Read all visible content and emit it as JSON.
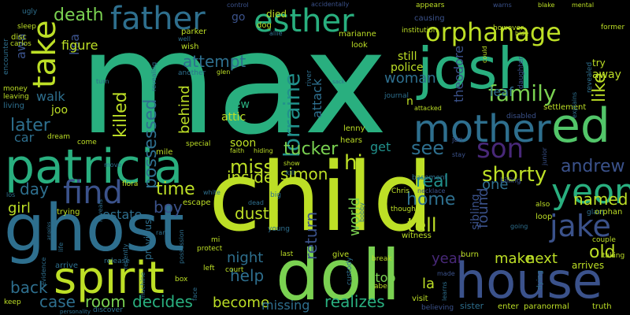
{
  "background": "#000000",
  "palette": {
    "lime": "#bddf26",
    "green": "#29af7f",
    "teal": "#2e6f8e",
    "blue": "#3b528b",
    "purple": "#482878",
    "dark": "#440154",
    "yellowgreen": "#7ad151",
    "cyan": "#21918c"
  },
  "words": [
    {
      "text": "max",
      "color": "#29af7f"
    },
    {
      "text": "child",
      "color": "#bddf26"
    },
    {
      "text": "josh",
      "color": "#29af7f"
    },
    {
      "text": "ghost",
      "color": "#2e6f8e"
    },
    {
      "text": "doll",
      "color": "#7ad151"
    },
    {
      "text": "house",
      "color": "#3b528b"
    },
    {
      "text": "patricia",
      "color": "#29af7f"
    },
    {
      "text": "spirit",
      "color": "#bddf26"
    },
    {
      "text": "ed",
      "color": "#52c569"
    },
    {
      "text": "mother",
      "color": "#2e6f8e"
    },
    {
      "text": "father",
      "color": "#2e6f8e"
    },
    {
      "text": "esther",
      "color": "#29af7f"
    },
    {
      "text": "orphanage",
      "color": "#bddf26"
    },
    {
      "text": "take",
      "color": "#bddf26"
    },
    {
      "text": "yeon",
      "color": "#29af7f"
    },
    {
      "text": "jake",
      "color": "#3b528b"
    },
    {
      "text": "son",
      "color": "#482878"
    },
    {
      "text": "find",
      "color": "#3b528b"
    },
    {
      "text": "lorraine",
      "color": "#21918c"
    },
    {
      "text": "family",
      "color": "#7ad151"
    },
    {
      "text": "shorty",
      "color": "#bddf26"
    },
    {
      "text": "killed",
      "color": "#bddf26"
    },
    {
      "text": "possessed",
      "color": "#2e6f8e"
    },
    {
      "text": "death",
      "color": "#7ad151"
    },
    {
      "text": "andrew",
      "color": "#3b528b"
    },
    {
      "text": "hi",
      "color": "#bddf26"
    },
    {
      "text": "see",
      "color": "#2e6f8e"
    },
    {
      "text": "later",
      "color": "#2e6f8e"
    },
    {
      "text": "miss",
      "color": "#bddf26"
    },
    {
      "text": "tucker",
      "color": "#7ad151"
    },
    {
      "text": "like",
      "color": "#bddf26"
    },
    {
      "text": "time",
      "color": "#bddf26"
    },
    {
      "text": "attempt",
      "color": "#2e6f8e"
    },
    {
      "text": "day",
      "color": "#2e6f8e"
    },
    {
      "text": "real",
      "color": "#21918c"
    },
    {
      "text": "home",
      "color": "#2e6f8e"
    },
    {
      "text": "tell",
      "color": "#bddf26"
    },
    {
      "text": "named",
      "color": "#bddf26"
    },
    {
      "text": "old",
      "color": "#bddf26"
    },
    {
      "text": "dusty",
      "color": "#bddf26"
    },
    {
      "text": "inside",
      "color": "#bddf26"
    },
    {
      "text": "simon",
      "color": "#bddf26"
    },
    {
      "text": "boy",
      "color": "#3b528b"
    },
    {
      "text": "return",
      "color": "#3b528b"
    },
    {
      "text": "found",
      "color": "#3b528b"
    },
    {
      "text": "world",
      "color": "#7ad151"
    },
    {
      "text": "help",
      "color": "#2e6f8e"
    },
    {
      "text": "night",
      "color": "#2e6f8e"
    },
    {
      "text": "become",
      "color": "#bddf26"
    },
    {
      "text": "room",
      "color": "#7ad151"
    },
    {
      "text": "case",
      "color": "#2e6f8e"
    },
    {
      "text": "back",
      "color": "#2e6f8e"
    },
    {
      "text": "decides",
      "color": "#29af7f"
    },
    {
      "text": "realizes",
      "color": "#29af7f"
    },
    {
      "text": "missing",
      "color": "#2e6f8e"
    },
    {
      "text": "make",
      "color": "#bddf26"
    },
    {
      "text": "next",
      "color": "#bddf26"
    },
    {
      "text": "year",
      "color": "#482878"
    },
    {
      "text": "la",
      "color": "#bddf26"
    },
    {
      "text": "stop",
      "color": "#7ad151"
    },
    {
      "text": "girl",
      "color": "#bddf26"
    },
    {
      "text": "estate",
      "color": "#2e6f8e"
    },
    {
      "text": "one",
      "color": "#2e6f8e"
    },
    {
      "text": "get",
      "color": "#21918c"
    },
    {
      "text": "attack",
      "color": "#2e6f8e"
    },
    {
      "text": "theodore",
      "color": "#3b528b"
    },
    {
      "text": "woman",
      "color": "#2e6f8e"
    },
    {
      "text": "lisa",
      "color": "#3b528b"
    },
    {
      "text": "figure",
      "color": "#bddf26"
    },
    {
      "text": "behind",
      "color": "#bddf26"
    },
    {
      "text": "soon",
      "color": "#bddf26"
    },
    {
      "text": "leaf",
      "color": "#2e6f8e"
    },
    {
      "text": "sibling",
      "color": "#3b528b"
    },
    {
      "text": "away",
      "color": "#bddf26"
    },
    {
      "text": "try",
      "color": "#bddf26"
    },
    {
      "text": "still",
      "color": "#bddf26"
    },
    {
      "text": "police",
      "color": "#bddf26"
    },
    {
      "text": "died",
      "color": "#bddf26"
    },
    {
      "text": "go",
      "color": "#3b528b"
    },
    {
      "text": "new",
      "color": "#29af7f"
    },
    {
      "text": "attic",
      "color": "#bddf26"
    },
    {
      "text": "joo",
      "color": "#bddf26"
    },
    {
      "text": "car",
      "color": "#2e6f8e"
    },
    {
      "text": "awa",
      "color": "#3b528b"
    },
    {
      "text": "n",
      "color": "#bddf26"
    },
    {
      "text": "lenny",
      "color": "#bddf26"
    },
    {
      "text": "hears",
      "color": "#bddf26"
    },
    {
      "text": "arrives",
      "color": "#bddf26"
    },
    {
      "text": "loop",
      "color": "#bddf26"
    },
    {
      "text": "walk",
      "color": "#2e6f8e"
    },
    {
      "text": "parker",
      "color": "#bddf26"
    },
    {
      "text": "wish",
      "color": "#bddf26"
    },
    {
      "text": "dog",
      "color": "#bddf26"
    },
    {
      "text": "marianne",
      "color": "#bddf26"
    },
    {
      "text": "look",
      "color": "#bddf26"
    },
    {
      "text": "disc",
      "color": "#bddf26"
    },
    {
      "text": "encounter",
      "color": "#2e6f8e"
    },
    {
      "text": "money",
      "color": "#bddf26"
    },
    {
      "text": "leaving",
      "color": "#bddf26"
    },
    {
      "text": "living",
      "color": "#2e6f8e"
    },
    {
      "text": "dream",
      "color": "#bddf26"
    },
    {
      "text": "come",
      "color": "#bddf26"
    },
    {
      "text": "special",
      "color": "#bddf26"
    },
    {
      "text": "mile",
      "color": "#bddf26"
    },
    {
      "text": "flora",
      "color": "#bddf26"
    },
    {
      "text": "escape",
      "color": "#bddf26"
    },
    {
      "text": "trying",
      "color": "#bddf26"
    },
    {
      "text": "previous",
      "color": "#2e6f8e"
    },
    {
      "text": "protect",
      "color": "#bddf26"
    },
    {
      "text": "young",
      "color": "#2e6f8e"
    },
    {
      "text": "last",
      "color": "#bddf26"
    },
    {
      "text": "give",
      "color": "#bddf26"
    },
    {
      "text": "witness",
      "color": "#bddf26"
    },
    {
      "text": "burn",
      "color": "#bddf26"
    },
    {
      "text": "visit",
      "color": "#bddf26"
    },
    {
      "text": "sister",
      "color": "#2e6f8e"
    },
    {
      "text": "enter",
      "color": "#bddf26"
    },
    {
      "text": "paranormal",
      "color": "#bddf26"
    },
    {
      "text": "truth",
      "color": "#bddf26"
    },
    {
      "text": "keep",
      "color": "#bddf26"
    },
    {
      "text": "Chris",
      "color": "#bddf26"
    },
    {
      "text": "basement",
      "color": "#2e6f8e"
    },
    {
      "text": "sleep",
      "color": "#bddf26"
    },
    {
      "text": "carlos",
      "color": "#bddf26"
    },
    {
      "text": "ugly",
      "color": "#2e6f8e"
    },
    {
      "text": "control",
      "color": "#3b528b"
    },
    {
      "text": "accidentally",
      "color": "#3b528b"
    },
    {
      "text": "appears",
      "color": "#bddf26"
    },
    {
      "text": "warns",
      "color": "#3b528b"
    },
    {
      "text": "blake",
      "color": "#bddf26"
    },
    {
      "text": "mental",
      "color": "#bddf26"
    },
    {
      "text": "however",
      "color": "#bddf26"
    },
    {
      "text": "former",
      "color": "#bddf26"
    },
    {
      "text": "causing",
      "color": "#3b528b"
    },
    {
      "text": "institution",
      "color": "#bddf26"
    },
    {
      "text": "revealed",
      "color": "#2e6f8e"
    },
    {
      "text": "daughter",
      "color": "#3b528b"
    },
    {
      "text": "settlement",
      "color": "#bddf26"
    },
    {
      "text": "journal",
      "color": "#2e6f8e"
    },
    {
      "text": "river",
      "color": "#2e6f8e"
    },
    {
      "text": "disabled",
      "color": "#3b528b"
    },
    {
      "text": "jan",
      "color": "#3b528b"
    },
    {
      "text": "junior",
      "color": "#3b528b"
    },
    {
      "text": "stay",
      "color": "#3b528b"
    },
    {
      "text": "also",
      "color": "#bddf26"
    },
    {
      "text": "killing",
      "color": "#3b528b"
    },
    {
      "text": "glass",
      "color": "#2e6f8e"
    },
    {
      "text": "orphan",
      "color": "#bddf26"
    },
    {
      "text": "couple",
      "color": "#bddf26"
    },
    {
      "text": "taking",
      "color": "#bddf26"
    },
    {
      "text": "dying",
      "color": "#2e6f8e"
    },
    {
      "text": "though",
      "color": "#bddf26"
    },
    {
      "text": "abe",
      "color": "#bddf26"
    },
    {
      "text": "made",
      "color": "#3b528b"
    },
    {
      "text": "believing",
      "color": "#3b528b"
    },
    {
      "text": "learns",
      "color": "#2e6f8e"
    },
    {
      "text": "custody",
      "color": "#2e6f8e"
    },
    {
      "text": "bobby",
      "color": "#2e6f8e"
    },
    {
      "text": "break",
      "color": "#bddf26"
    },
    {
      "text": "necklace",
      "color": "#3b528b"
    },
    {
      "text": "court",
      "color": "#bddf26"
    },
    {
      "text": "left",
      "color": "#bddf26"
    },
    {
      "text": "face",
      "color": "#2e6f8e"
    },
    {
      "text": "box",
      "color": "#bddf26"
    },
    {
      "text": "machine",
      "color": "#2e6f8e"
    },
    {
      "text": "release",
      "color": "#2e6f8e"
    },
    {
      "text": "recently",
      "color": "#2e6f8e"
    },
    {
      "text": "arrive",
      "color": "#2e6f8e"
    },
    {
      "text": "life",
      "color": "#2e6f8e"
    },
    {
      "text": "evidence",
      "color": "#2e6f8e"
    },
    {
      "text": "discover",
      "color": "#2e6f8e"
    },
    {
      "text": "personality",
      "color": "#2e6f8e"
    },
    {
      "text": "reveals",
      "color": "#2e6f8e"
    },
    {
      "text": "ram",
      "color": "#2e6f8e"
    },
    {
      "text": "possession",
      "color": "#2e6f8e"
    },
    {
      "text": "move",
      "color": "#2e6f8e"
    },
    {
      "text": "white",
      "color": "#2e6f8e"
    },
    {
      "text": "dead",
      "color": "#2e6f8e"
    },
    {
      "text": "big",
      "color": "#2e6f8e"
    },
    {
      "text": "faith",
      "color": "#bddf26"
    },
    {
      "text": "hiding",
      "color": "#bddf26"
    },
    {
      "text": "show",
      "color": "#bddf26"
    },
    {
      "text": "kill",
      "color": "#2e6f8e"
    },
    {
      "text": "allie",
      "color": "#2e6f8e"
    },
    {
      "text": "glen",
      "color": "#bddf26"
    },
    {
      "text": "another",
      "color": "#2e6f8e"
    },
    {
      "text": "revealing",
      "color": "#2e6f8e"
    },
    {
      "text": "turn",
      "color": "#2e6f8e"
    },
    {
      "text": "well",
      "color": "#2e6f8e"
    },
    {
      "text": "sack",
      "color": "#2e6f8e"
    },
    {
      "text": "hide",
      "color": "#bddf26"
    },
    {
      "text": "could",
      "color": "#bddf26"
    },
    {
      "text": "attacked",
      "color": "#bddf26"
    },
    {
      "text": "explains",
      "color": "#2e6f8e"
    },
    {
      "text": "going",
      "color": "#2e6f8e"
    },
    {
      "text": "los",
      "color": "#2e6f8e"
    },
    {
      "text": "mi",
      "color": "#bddf26"
    },
    {
      "text": "angeles",
      "color": "#2e6f8e"
    }
  ]
}
